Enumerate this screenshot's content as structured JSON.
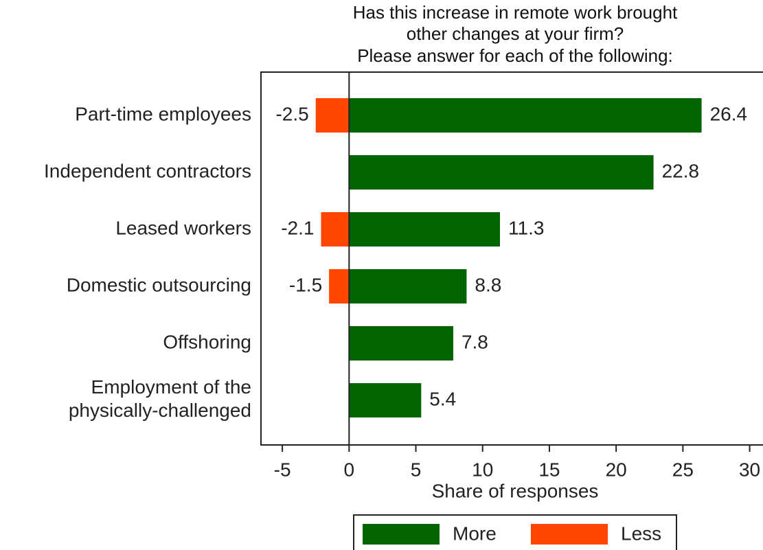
{
  "chart_data": {
    "type": "bar",
    "orientation": "horizontal",
    "title": [
      "Has this increase in remote work brought",
      "other changes at your firm?",
      "Please answer for each of the following:"
    ],
    "x_label": "Share of responses",
    "categories": [
      "Part-time employees",
      "Independent contractors",
      "Leased workers",
      "Domestic outsourcing",
      "Offshoring",
      "Employment of the\nphysically-challenged"
    ],
    "series": [
      {
        "name": "More",
        "color": "#006400",
        "values": [
          26.4,
          22.8,
          11.3,
          8.8,
          7.8,
          5.4
        ]
      },
      {
        "name": "Less",
        "color": "#ff4500",
        "values": [
          -2.5,
          null,
          -2.1,
          -1.5,
          null,
          null
        ]
      }
    ],
    "xlim": [
      -6.6,
      31
    ],
    "xticks": [
      -5,
      0,
      5,
      10,
      15,
      20,
      25,
      30
    ],
    "legend": "bottom"
  }
}
